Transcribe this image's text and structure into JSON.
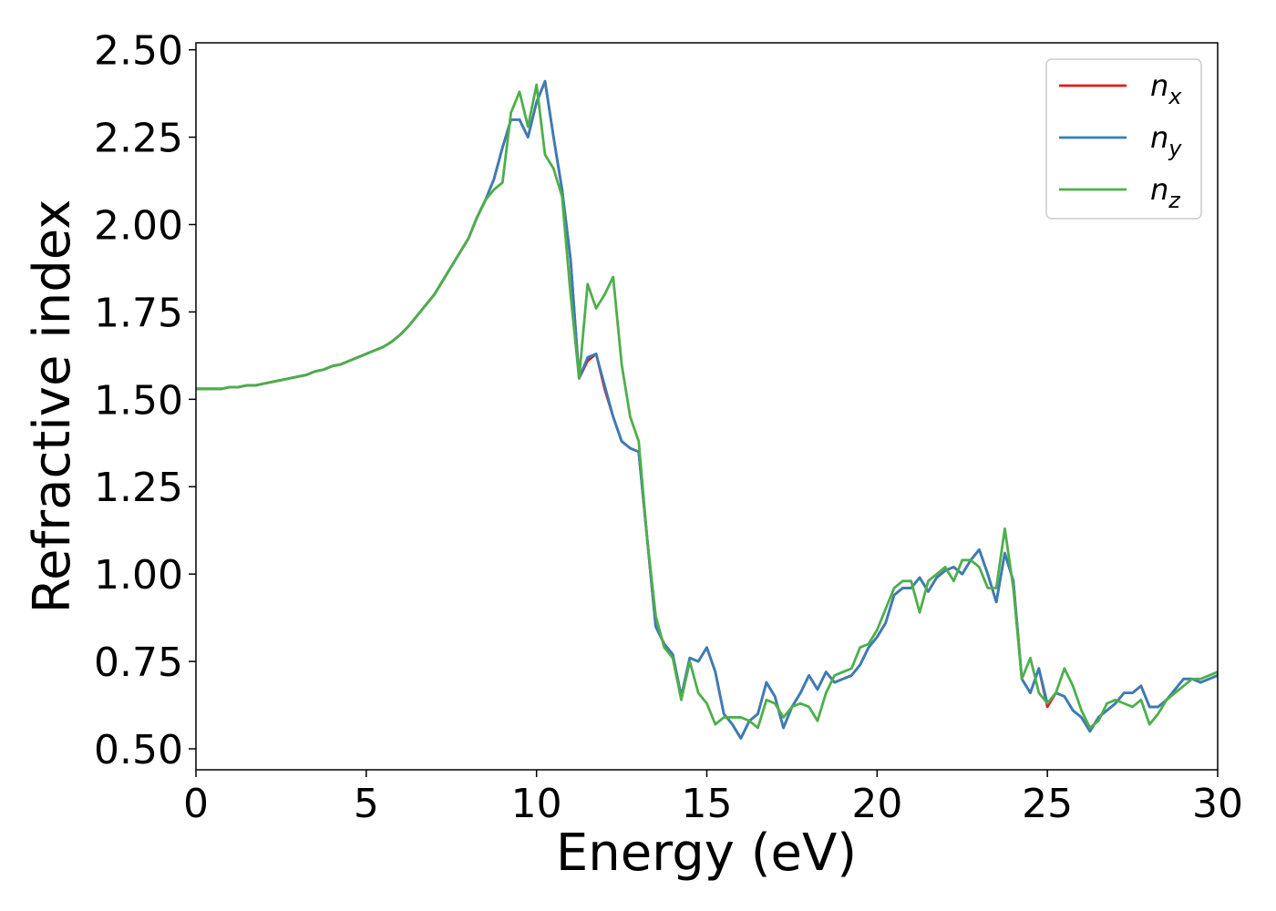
{
  "chart_data": {
    "type": "line",
    "xlabel": "Energy (eV)",
    "ylabel": "Refractive index",
    "xlim": [
      0,
      30
    ],
    "xticks": [
      0,
      5,
      10,
      15,
      20,
      25,
      30
    ],
    "ylim": [
      0.44,
      2.52
    ],
    "yticks": [
      {
        "value": 0.5,
        "label": "0.50"
      },
      {
        "value": 0.75,
        "label": "0.75"
      },
      {
        "value": 1,
        "label": "1.00"
      },
      {
        "value": 1.25,
        "label": "1.25"
      },
      {
        "value": 1.5,
        "label": "1.50"
      },
      {
        "value": 1.75,
        "label": "1.75"
      },
      {
        "value": 2,
        "label": "2.00"
      },
      {
        "value": 2.25,
        "label": "2.25"
      },
      {
        "value": 2.5,
        "label": "2.50"
      }
    ],
    "legend": "upper right",
    "x": [
      0,
      0.25,
      0.5,
      0.75,
      1,
      1.25,
      1.5,
      1.75,
      2,
      2.25,
      2.5,
      2.75,
      3,
      3.25,
      3.5,
      3.75,
      4,
      4.25,
      4.5,
      4.75,
      5,
      5.25,
      5.5,
      5.75,
      6,
      6.25,
      6.5,
      6.75,
      7,
      7.25,
      7.5,
      7.75,
      8,
      8.25,
      8.5,
      8.75,
      9,
      9.25,
      9.5,
      9.75,
      10,
      10.25,
      10.5,
      10.75,
      11,
      11.25,
      11.5,
      11.75,
      12,
      12.25,
      12.5,
      12.75,
      13,
      13.25,
      13.5,
      13.75,
      14,
      14.25,
      14.5,
      14.75,
      15,
      15.25,
      15.5,
      15.75,
      16,
      16.25,
      16.5,
      16.75,
      17,
      17.25,
      17.5,
      17.75,
      18,
      18.25,
      18.5,
      18.75,
      19,
      19.25,
      19.5,
      19.75,
      20,
      20.25,
      20.5,
      20.75,
      21,
      21.25,
      21.5,
      21.75,
      22,
      22.25,
      22.5,
      22.75,
      23,
      23.25,
      23.5,
      23.75,
      24,
      24.25,
      24.5,
      24.75,
      25,
      25.25,
      25.5,
      25.75,
      26,
      26.25,
      26.5,
      26.75,
      27,
      27.25,
      27.5,
      27.75,
      28,
      28.25,
      28.5,
      28.75,
      29,
      29.25,
      29.5,
      29.75,
      30
    ],
    "series": [
      {
        "name": "n_x",
        "color": "#e41a1c",
        "values": [
          1.53,
          1.53,
          1.53,
          1.53,
          1.535,
          1.535,
          1.54,
          1.54,
          1.545,
          1.55,
          1.555,
          1.56,
          1.565,
          1.57,
          1.58,
          1.585,
          1.595,
          1.6,
          1.61,
          1.62,
          1.63,
          1.64,
          1.65,
          1.665,
          1.685,
          1.71,
          1.74,
          1.77,
          1.8,
          1.84,
          1.88,
          1.92,
          1.96,
          2.02,
          2.07,
          2.13,
          2.22,
          2.3,
          2.3,
          2.25,
          2.35,
          2.41,
          2.25,
          2.1,
          1.9,
          1.56,
          1.61,
          1.63,
          1.53,
          1.45,
          1.38,
          1.36,
          1.35,
          1.1,
          0.85,
          0.8,
          0.77,
          0.65,
          0.76,
          0.75,
          0.79,
          0.72,
          0.6,
          0.57,
          0.53,
          0.58,
          0.6,
          0.69,
          0.65,
          0.56,
          0.62,
          0.66,
          0.71,
          0.67,
          0.72,
          0.69,
          0.7,
          0.71,
          0.74,
          0.79,
          0.82,
          0.86,
          0.94,
          0.96,
          0.96,
          0.99,
          0.95,
          0.99,
          1.01,
          1.02,
          1.0,
          1.04,
          1.07,
          1.0,
          0.92,
          1.06,
          0.98,
          0.7,
          0.66,
          0.73,
          0.62,
          0.66,
          0.65,
          0.61,
          0.59,
          0.55,
          0.59,
          0.61,
          0.63,
          0.66,
          0.66,
          0.68,
          0.62,
          0.62,
          0.64,
          0.67,
          0.7,
          0.7,
          0.69,
          0.7,
          0.71
        ]
      },
      {
        "name": "n_y",
        "color": "#377eb8",
        "values": [
          1.53,
          1.53,
          1.53,
          1.53,
          1.535,
          1.535,
          1.54,
          1.54,
          1.545,
          1.55,
          1.555,
          1.56,
          1.565,
          1.57,
          1.58,
          1.585,
          1.595,
          1.6,
          1.61,
          1.62,
          1.63,
          1.64,
          1.65,
          1.665,
          1.685,
          1.71,
          1.74,
          1.77,
          1.8,
          1.84,
          1.88,
          1.92,
          1.96,
          2.02,
          2.07,
          2.13,
          2.22,
          2.3,
          2.3,
          2.25,
          2.35,
          2.41,
          2.25,
          2.1,
          1.9,
          1.56,
          1.62,
          1.63,
          1.54,
          1.45,
          1.38,
          1.36,
          1.35,
          1.1,
          0.85,
          0.8,
          0.77,
          0.65,
          0.76,
          0.75,
          0.79,
          0.72,
          0.6,
          0.57,
          0.53,
          0.58,
          0.6,
          0.69,
          0.65,
          0.56,
          0.62,
          0.66,
          0.71,
          0.67,
          0.72,
          0.69,
          0.7,
          0.71,
          0.74,
          0.79,
          0.82,
          0.86,
          0.94,
          0.96,
          0.96,
          0.99,
          0.95,
          0.99,
          1.01,
          1.02,
          1.0,
          1.04,
          1.07,
          1.0,
          0.92,
          1.06,
          0.98,
          0.7,
          0.66,
          0.73,
          0.63,
          0.66,
          0.65,
          0.61,
          0.59,
          0.55,
          0.59,
          0.61,
          0.63,
          0.66,
          0.66,
          0.68,
          0.62,
          0.62,
          0.64,
          0.67,
          0.7,
          0.7,
          0.69,
          0.7,
          0.71
        ]
      },
      {
        "name": "n_z",
        "color": "#4daf4a",
        "values": [
          1.53,
          1.53,
          1.53,
          1.53,
          1.535,
          1.535,
          1.54,
          1.54,
          1.545,
          1.55,
          1.555,
          1.56,
          1.565,
          1.57,
          1.58,
          1.585,
          1.595,
          1.6,
          1.61,
          1.62,
          1.63,
          1.64,
          1.65,
          1.665,
          1.685,
          1.71,
          1.74,
          1.77,
          1.8,
          1.84,
          1.88,
          1.92,
          1.96,
          2.02,
          2.07,
          2.1,
          2.12,
          2.32,
          2.38,
          2.28,
          2.4,
          2.2,
          2.16,
          2.08,
          1.8,
          1.56,
          1.83,
          1.76,
          1.8,
          1.85,
          1.6,
          1.45,
          1.38,
          1.1,
          0.88,
          0.79,
          0.76,
          0.64,
          0.75,
          0.66,
          0.63,
          0.57,
          0.59,
          0.59,
          0.59,
          0.58,
          0.56,
          0.64,
          0.63,
          0.59,
          0.62,
          0.63,
          0.62,
          0.58,
          0.66,
          0.71,
          0.72,
          0.73,
          0.79,
          0.8,
          0.84,
          0.9,
          0.96,
          0.98,
          0.98,
          0.89,
          0.98,
          1.0,
          1.02,
          0.98,
          1.04,
          1.04,
          1.02,
          0.96,
          0.96,
          1.13,
          0.96,
          0.7,
          0.76,
          0.66,
          0.63,
          0.66,
          0.73,
          0.68,
          0.61,
          0.56,
          0.58,
          0.63,
          0.64,
          0.63,
          0.62,
          0.64,
          0.57,
          0.6,
          0.64,
          0.66,
          0.68,
          0.7,
          0.7,
          0.71,
          0.72
        ]
      }
    ]
  }
}
